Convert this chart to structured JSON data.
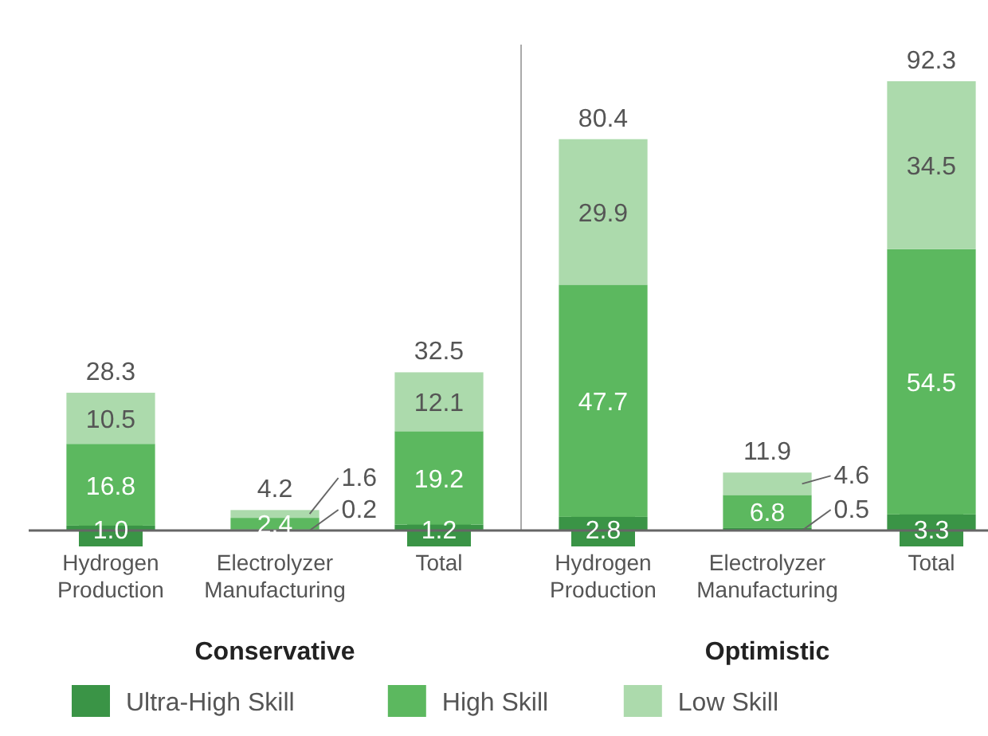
{
  "chart_data": {
    "type": "bar",
    "stacked": true,
    "legend": "bottom",
    "categories": [
      "Hydrogen Production",
      "Electrolyzer Manufacturing",
      "Total",
      "Hydrogen Production",
      "Electrolyzer Manufacturing",
      "Total"
    ],
    "series": [
      {
        "name": "Ultra-High Skill",
        "color": "#3a9446",
        "values": [
          1.0,
          0.2,
          1.2,
          2.8,
          0.5,
          3.3
        ],
        "value_labels": [
          "1.0",
          "0.2",
          "1.2",
          "2.8",
          "0.5",
          "3.3"
        ]
      },
      {
        "name": "High Skill",
        "color": "#5cb85f",
        "values": [
          16.8,
          2.4,
          19.2,
          47.7,
          6.8,
          54.5
        ],
        "value_labels": [
          "16.8",
          "2.4",
          "19.2",
          "47.7",
          "6.8",
          "54.5"
        ]
      },
      {
        "name": "Low Skill",
        "color": "#acdaac",
        "values": [
          10.5,
          1.6,
          12.1,
          29.9,
          4.6,
          34.5
        ],
        "value_labels": [
          "10.5",
          "1.6",
          "12.1",
          "29.9",
          "4.6",
          "34.5"
        ]
      }
    ],
    "totals": [
      "28.3",
      "4.2",
      "32.5",
      "80.4",
      "11.9",
      "92.3"
    ],
    "annotations": [
      "Conservative",
      "Optimistic"
    ]
  }
}
